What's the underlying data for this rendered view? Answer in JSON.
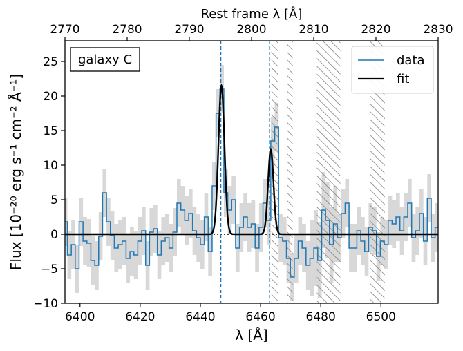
{
  "chart_data": {
    "type": "line",
    "annotation": "galaxy C",
    "xlabel": "λ [Å]",
    "ylabel": "Flux [10⁻²⁰ erg s⁻¹ cm⁻² Å⁻¹]",
    "top_xlabel": "Rest frame λ [Å]",
    "xlim": [
      6395,
      6519
    ],
    "ylim": [
      -10,
      28
    ],
    "top_xlim": [
      2770,
      2830
    ],
    "xticks": [
      "6400",
      "6420",
      "6440",
      "6460",
      "6480",
      "6500"
    ],
    "xtick_values": [
      6400,
      6420,
      6440,
      6460,
      6480,
      6500
    ],
    "yticks": [
      "−10",
      "−5",
      "0",
      "5",
      "10",
      "15",
      "20",
      "25"
    ],
    "ytick_values": [
      -10,
      -5,
      0,
      5,
      10,
      15,
      20,
      25
    ],
    "top_xticks": [
      "2770",
      "2780",
      "2790",
      "2800",
      "2810",
      "2820",
      "2830"
    ],
    "top_xtick_values": [
      2770,
      2780,
      2790,
      2800,
      2810,
      2820,
      2830
    ],
    "legend": {
      "position": "top-right",
      "entries": [
        "data",
        "fit"
      ]
    },
    "grid": false,
    "series": [
      {
        "name": "data",
        "style": "step",
        "color": "#1f77b4",
        "x": [
          6394.5,
          6395.8,
          6397.1,
          6398.4,
          6399.7,
          6401.0,
          6402.3,
          6403.6,
          6404.9,
          6406.2,
          6407.5,
          6408.8,
          6410.1,
          6411.4,
          6412.7,
          6414.0,
          6415.3,
          6416.6,
          6417.9,
          6419.2,
          6420.5,
          6421.8,
          6423.1,
          6424.4,
          6425.7,
          6427.0,
          6428.3,
          6429.6,
          6430.9,
          6432.2,
          6433.5,
          6434.8,
          6436.1,
          6437.4,
          6438.7,
          6440.0,
          6441.3,
          6442.6,
          6443.9,
          6445.2,
          6446.5,
          6447.8,
          6449.1,
          6450.4,
          6451.7,
          6453.0,
          6454.3,
          6455.6,
          6456.9,
          6458.2,
          6459.5,
          6460.8,
          6462.1,
          6463.4,
          6464.7,
          6466.0,
          6467.3,
          6468.6,
          6469.9,
          6471.2,
          6472.5,
          6473.8,
          6475.1,
          6476.4,
          6477.7,
          6479.0,
          6480.3,
          6481.6,
          6482.9,
          6484.2,
          6485.5,
          6486.8,
          6488.1,
          6489.4,
          6490.7,
          6492.0,
          6493.3,
          6494.6,
          6495.9,
          6497.2,
          6498.5,
          6499.8,
          6501.1,
          6502.4,
          6503.7,
          6505.0,
          6506.3,
          6507.6,
          6508.9,
          6510.2,
          6511.5,
          6512.8,
          6514.1,
          6515.4,
          6516.7,
          6518.0
        ],
        "y": [
          1.8,
          -3.0,
          -1.5,
          -5.0,
          1.8,
          -1.0,
          -1.3,
          -3.8,
          -4.5,
          -0.3,
          6.0,
          1.8,
          -0.2,
          -2.0,
          -1.5,
          -1.0,
          -3.5,
          -2.5,
          -3.0,
          -1.0,
          0.5,
          -4.5,
          0.3,
          0.8,
          -3.0,
          -1.0,
          -0.5,
          -2.0,
          0.3,
          4.5,
          3.5,
          2.0,
          3.0,
          0.5,
          -0.5,
          -1.5,
          2.5,
          -2.5,
          7.0,
          17.5,
          21.0,
          6.0,
          3.5,
          5.0,
          -2.0,
          1.0,
          2.5,
          1.0,
          1.5,
          -2.0,
          1.0,
          4.5,
          2.0,
          13.5,
          15.5,
          -0.5,
          -1.0,
          -3.5,
          -6.2,
          -3.5,
          -1.0,
          -2.0,
          -4.5,
          -3.5,
          -2.0,
          -3.8,
          3.5,
          2.0,
          -1.5,
          1.5,
          -0.5,
          3.0,
          4.5,
          -2.0,
          -2.0,
          0.5,
          -1.0,
          -2.5,
          1.0,
          0.5,
          -3.2,
          -1.0,
          -1.5,
          2.0,
          1.5,
          2.5,
          0.5,
          2.5,
          4.5,
          -0.5,
          0.5,
          3.0,
          -1.0,
          5.2,
          -0.5,
          1.0
        ],
        "err": [
          3.5,
          3.5,
          3.5,
          3.5,
          3.5,
          3.5,
          3.5,
          3.5,
          3.5,
          3.5,
          3.5,
          3.5,
          3.5,
          3.5,
          3.5,
          3.5,
          3.5,
          3.5,
          3.5,
          3.5,
          3.5,
          3.5,
          3.5,
          3.5,
          3.5,
          3.5,
          3.5,
          3.5,
          3.5,
          3.5,
          3.5,
          3.5,
          3.5,
          3.5,
          3.5,
          3.5,
          3.5,
          3.5,
          3.5,
          3.5,
          3.5,
          3.5,
          3.5,
          3.5,
          3.5,
          3.5,
          3.5,
          3.5,
          3.5,
          3.5,
          3.5,
          3.5,
          3.5,
          3.5,
          3.5,
          3.5,
          3.5,
          3.5,
          3.5,
          3.5,
          3.5,
          3.5,
          3.5,
          5.5,
          5.5,
          5.5,
          5.5,
          5.5,
          5.5,
          5.5,
          3.5,
          3.5,
          3.5,
          3.5,
          3.5,
          3.5,
          3.5,
          3.5,
          3.5,
          3.5,
          3.5,
          3.5,
          3.5,
          3.5,
          3.5,
          3.5,
          3.5,
          3.5,
          3.5,
          3.5,
          3.5,
          3.5,
          3.5,
          3.5,
          3.5,
          3.5
        ]
      },
      {
        "name": "fit",
        "style": "line",
        "color": "#000000",
        "gaussians": [
          {
            "center": 6447.0,
            "amplitude": 21.5,
            "sigma": 1.0
          },
          {
            "center": 6463.4,
            "amplitude": 12.3,
            "sigma": 0.9
          }
        ]
      }
    ],
    "reference_lines": [
      6446.8,
      6463.0
    ],
    "zero_line": 0,
    "masked_regions": [
      [
        6463.6,
        6465.8
      ],
      [
        6468.9,
        6470.7
      ],
      [
        6478.7,
        6486.5
      ],
      [
        6496.4,
        6501.3
      ]
    ]
  }
}
